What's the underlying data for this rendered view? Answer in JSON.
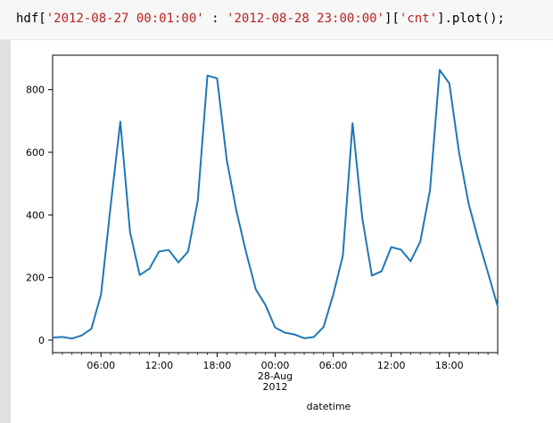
{
  "code": {
    "parts": [
      {
        "text": "hdf[",
        "kind": "plain"
      },
      {
        "text": "'2012-08-27 00:01:00'",
        "kind": "str"
      },
      {
        "text": " : ",
        "kind": "plain"
      },
      {
        "text": "'2012-08-28 23:00:00'",
        "kind": "str"
      },
      {
        "text": "][",
        "kind": "plain"
      },
      {
        "text": "'cnt'",
        "kind": "str"
      },
      {
        "text": "].plot();",
        "kind": "plain"
      }
    ]
  },
  "chart_data": {
    "type": "line",
    "xlabel": "datetime",
    "ylabel": "",
    "title": "",
    "xlim": [
      1,
      47
    ],
    "ylim": [
      -40,
      910
    ],
    "grid": false,
    "legend": false,
    "yticks": [
      0,
      200,
      400,
      600,
      800
    ],
    "xticks": [
      {
        "x": 6,
        "lines": [
          "06:00"
        ]
      },
      {
        "x": 12,
        "lines": [
          "12:00"
        ]
      },
      {
        "x": 18,
        "lines": [
          "18:00"
        ]
      },
      {
        "x": 24,
        "lines": [
          "00:00",
          "28-Aug",
          "2012"
        ]
      },
      {
        "x": 30,
        "lines": [
          "06:00"
        ]
      },
      {
        "x": 36,
        "lines": [
          "12:00"
        ]
      },
      {
        "x": 42,
        "lines": [
          "18:00"
        ]
      }
    ],
    "series": [
      {
        "color": "#1f77b4",
        "x": [
          1,
          2,
          3,
          4,
          5,
          6,
          7,
          8,
          9,
          10,
          11,
          12,
          13,
          14,
          15,
          16,
          17,
          18,
          19,
          20,
          21,
          22,
          23,
          24,
          25,
          26,
          27,
          28,
          29,
          30,
          31,
          32,
          33,
          34,
          35,
          36,
          37,
          38,
          39,
          40,
          41,
          42,
          43,
          44,
          45,
          46,
          47
        ],
        "values": [
          8,
          10,
          5,
          15,
          36,
          145,
          430,
          698,
          345,
          208,
          228,
          283,
          288,
          248,
          283,
          445,
          845,
          836,
          575,
          412,
          280,
          162,
          112,
          40,
          24,
          18,
          6,
          10,
          42,
          145,
          270,
          693,
          390,
          206,
          220,
          297,
          289,
          252,
          315,
          478,
          863,
          820,
          600,
          435,
          320,
          215,
          108
        ]
      }
    ]
  }
}
